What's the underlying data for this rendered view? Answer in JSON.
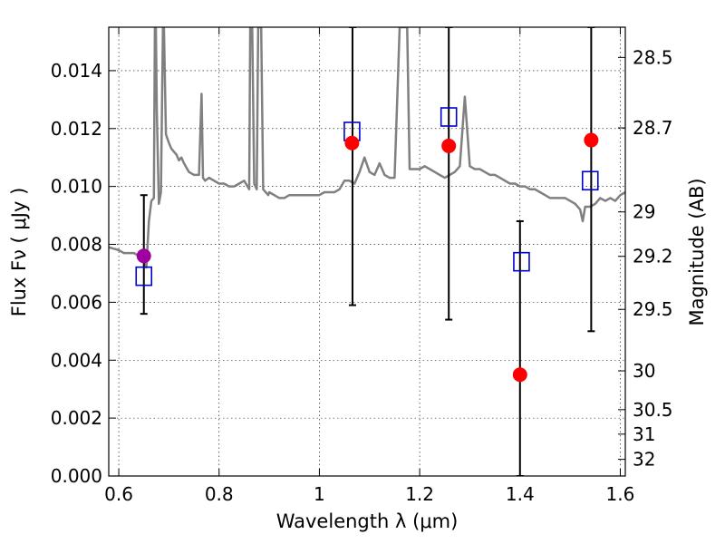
{
  "chart_data": {
    "type": "scatter",
    "title": "",
    "xlabel": "Wavelength  λ (μm)",
    "ylabel": "Flux  Fν  ( μJy )",
    "ylabel_right": "Magnitude (AB)",
    "xlim": [
      0.58,
      1.61
    ],
    "ylim": [
      0.0,
      0.0155
    ],
    "grid": true,
    "x_ticks": [
      0.6,
      0.8,
      1.0,
      1.2,
      1.4,
      1.6
    ],
    "x_tick_labels": [
      "0.6",
      "0.8",
      "1",
      "1.2",
      "1.4",
      "1.6"
    ],
    "y_ticks": [
      0.0,
      0.002,
      0.004,
      0.006,
      0.008,
      0.01,
      0.012,
      0.014
    ],
    "y_tick_labels": [
      "0.000",
      "0.002",
      "0.004",
      "0.006",
      "0.008",
      "0.010",
      "0.012",
      "0.014"
    ],
    "right_ticks": [
      {
        "label": "28.5",
        "mag": 28.5
      },
      {
        "label": "28.7",
        "mag": 28.7
      },
      {
        "label": "29",
        "mag": 29.0
      },
      {
        "label": "29.2",
        "mag": 29.2
      },
      {
        "label": "29.5",
        "mag": 29.5
      },
      {
        "label": "30",
        "mag": 30.0
      },
      {
        "label": "30.5",
        "mag": 30.5
      },
      {
        "label": "31",
        "mag": 31.0
      },
      {
        "label": "32",
        "mag": 32.0
      }
    ],
    "colors": {
      "model": "#808080",
      "observed": "#ff0000",
      "observed_optical": "#a000a0",
      "model_photometry": "#0000cc",
      "errorbar": "#000000"
    },
    "series": [
      {
        "kind": "model-spectrum",
        "x": [
          0.58,
          0.6,
          0.61,
          0.62,
          0.63,
          0.64,
          0.65,
          0.655,
          0.66,
          0.665,
          0.67,
          0.672,
          0.674,
          0.676,
          0.68,
          0.684,
          0.688,
          0.69,
          0.694,
          0.7,
          0.705,
          0.71,
          0.715,
          0.72,
          0.725,
          0.73,
          0.74,
          0.75,
          0.76,
          0.765,
          0.768,
          0.772,
          0.78,
          0.79,
          0.8,
          0.81,
          0.82,
          0.83,
          0.84,
          0.85,
          0.86,
          0.862,
          0.866,
          0.87,
          0.875,
          0.878,
          0.88,
          0.884,
          0.888,
          0.893,
          0.898,
          0.9,
          0.91,
          0.92,
          0.93,
          0.94,
          0.95,
          0.96,
          0.97,
          0.98,
          0.99,
          1.0,
          1.01,
          1.02,
          1.03,
          1.04,
          1.05,
          1.06,
          1.07,
          1.08,
          1.09,
          1.1,
          1.11,
          1.12,
          1.13,
          1.14,
          1.15,
          1.16,
          1.165,
          1.17,
          1.175,
          1.18,
          1.19,
          1.2,
          1.21,
          1.22,
          1.23,
          1.24,
          1.25,
          1.26,
          1.27,
          1.28,
          1.29,
          1.3,
          1.31,
          1.32,
          1.33,
          1.34,
          1.35,
          1.36,
          1.37,
          1.38,
          1.39,
          1.4,
          1.41,
          1.42,
          1.43,
          1.44,
          1.45,
          1.46,
          1.47,
          1.48,
          1.49,
          1.5,
          1.51,
          1.52,
          1.525,
          1.53,
          1.54,
          1.55,
          1.56,
          1.57,
          1.58,
          1.59,
          1.6,
          1.61
        ],
        "y": [
          0.0079,
          0.0078,
          0.0077,
          0.0077,
          0.0077,
          0.0076,
          0.0074,
          0.0072,
          0.0088,
          0.0095,
          0.0096,
          0.0155,
          0.0155,
          0.0125,
          0.0094,
          0.0098,
          0.0155,
          0.0155,
          0.0118,
          0.0115,
          0.0113,
          0.0112,
          0.0111,
          0.0109,
          0.011,
          0.0108,
          0.0105,
          0.0104,
          0.0104,
          0.0132,
          0.0103,
          0.0102,
          0.0103,
          0.0102,
          0.0101,
          0.0101,
          0.01,
          0.01,
          0.0101,
          0.0102,
          0.0099,
          0.0155,
          0.0155,
          0.0101,
          0.0099,
          0.0155,
          0.0155,
          0.0155,
          0.0099,
          0.0098,
          0.0097,
          0.0098,
          0.0097,
          0.0096,
          0.0096,
          0.0097,
          0.0097,
          0.0097,
          0.0097,
          0.0097,
          0.0097,
          0.0097,
          0.0098,
          0.0098,
          0.0098,
          0.0099,
          0.0102,
          0.0102,
          0.0101,
          0.0105,
          0.011,
          0.0105,
          0.0104,
          0.0108,
          0.0104,
          0.0103,
          0.0103,
          0.0155,
          0.0155,
          0.0155,
          0.0155,
          0.0106,
          0.0106,
          0.0106,
          0.0107,
          0.0106,
          0.0105,
          0.0104,
          0.0103,
          0.0104,
          0.0105,
          0.0107,
          0.0131,
          0.0107,
          0.0106,
          0.0106,
          0.0105,
          0.0104,
          0.0104,
          0.0103,
          0.0102,
          0.0101,
          0.0101,
          0.01,
          0.01,
          0.0099,
          0.0099,
          0.0098,
          0.0097,
          0.0096,
          0.0096,
          0.0096,
          0.0096,
          0.0095,
          0.0094,
          0.0092,
          0.0088,
          0.0093,
          0.0093,
          0.0094,
          0.0096,
          0.0095,
          0.0096,
          0.0095,
          0.0097,
          0.0098
        ]
      },
      {
        "kind": "observed-flux",
        "x": [
          1.065,
          1.258,
          1.4,
          1.542
        ],
        "y": [
          0.0115,
          0.0114,
          0.0035,
          0.0116
        ]
      },
      {
        "kind": "observed-flux-optical",
        "x": [
          0.65
        ],
        "y": [
          0.0076
        ]
      },
      {
        "kind": "model-photometry",
        "x": [
          0.65,
          1.065,
          1.258,
          1.403,
          1.54
        ],
        "y": [
          0.0069,
          0.0119,
          0.0124,
          0.0074,
          0.0102
        ]
      }
    ],
    "errorbars": [
      {
        "x": 0.65,
        "low": 0.0056,
        "high": 0.0097
      },
      {
        "x": 1.066,
        "low": 0.0059,
        "high": 0.0155
      },
      {
        "x": 1.258,
        "low": 0.0054,
        "high": 0.0155
      },
      {
        "x": 1.4,
        "low": 0.0,
        "high": 0.0088
      },
      {
        "x": 1.542,
        "low": 0.005,
        "high": 0.0155
      }
    ]
  }
}
